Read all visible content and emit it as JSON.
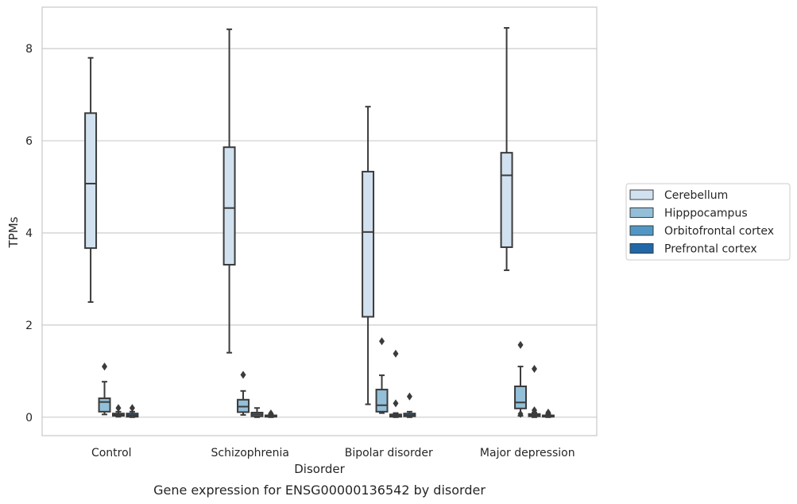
{
  "caption": "Gene expression for ENSG00000136542 by disorder",
  "chart_data": {
    "type": "box",
    "xlabel": "Disorder",
    "ylabel": "TPMs",
    "ylim": [
      -0.4,
      8.9
    ],
    "yticks": [
      0,
      2,
      4,
      6,
      8
    ],
    "grid": "horizontal",
    "legend_position": "right",
    "categories": [
      "Control",
      "Schizophrenia",
      "Bipolar disorder",
      "Major depression"
    ],
    "series": [
      {
        "name": "Cerebellum",
        "color": "#d1e1ef",
        "boxes": [
          {
            "whisker_low": 2.5,
            "q1": 3.67,
            "median": 5.07,
            "q3": 6.6,
            "whisker_high": 7.8,
            "outliers": []
          },
          {
            "whisker_low": 1.4,
            "q1": 3.31,
            "median": 4.54,
            "q3": 5.86,
            "whisker_high": 8.42,
            "outliers": []
          },
          {
            "whisker_low": 0.28,
            "q1": 2.18,
            "median": 4.02,
            "q3": 5.33,
            "whisker_high": 6.74,
            "outliers": []
          },
          {
            "whisker_low": 3.19,
            "q1": 3.69,
            "median": 5.25,
            "q3": 5.74,
            "whisker_high": 8.45,
            "outliers": []
          }
        ]
      },
      {
        "name": "Hipppocampus",
        "color": "#93bfd9",
        "boxes": [
          {
            "whisker_low": 0.06,
            "q1": 0.12,
            "median": 0.33,
            "q3": 0.41,
            "whisker_high": 0.77,
            "outliers": [
              1.1
            ]
          },
          {
            "whisker_low": 0.05,
            "q1": 0.11,
            "median": 0.23,
            "q3": 0.38,
            "whisker_high": 0.57,
            "outliers": [
              0.92
            ]
          },
          {
            "whisker_low": 0.09,
            "q1": 0.12,
            "median": 0.26,
            "q3": 0.6,
            "whisker_high": 0.91,
            "outliers": [
              1.65
            ]
          },
          {
            "whisker_low": 0.03,
            "q1": 0.19,
            "median": 0.32,
            "q3": 0.67,
            "whisker_high": 1.1,
            "outliers": [
              1.57,
              0.07
            ]
          }
        ]
      },
      {
        "name": "Orbitofrontal cortex",
        "color": "#5197c6",
        "boxes": [
          {
            "whisker_low": 0.01,
            "q1": 0.03,
            "median": 0.05,
            "q3": 0.08,
            "whisker_high": 0.12,
            "outliers": [
              0.2
            ]
          },
          {
            "whisker_low": 0.0,
            "q1": 0.02,
            "median": 0.06,
            "q3": 0.1,
            "whisker_high": 0.2,
            "outliers": []
          },
          {
            "whisker_low": 0.0,
            "q1": 0.01,
            "median": 0.03,
            "q3": 0.06,
            "whisker_high": 0.09,
            "outliers": [
              1.38,
              0.3
            ]
          },
          {
            "whisker_low": 0.0,
            "q1": 0.02,
            "median": 0.04,
            "q3": 0.07,
            "whisker_high": 0.1,
            "outliers": [
              1.05,
              0.15
            ]
          }
        ]
      },
      {
        "name": "Prefrontal cortex",
        "color": "#2268a9",
        "boxes": [
          {
            "whisker_low": 0.0,
            "q1": 0.01,
            "median": 0.04,
            "q3": 0.08,
            "whisker_high": 0.12,
            "outliers": [
              0.2
            ]
          },
          {
            "whisker_low": 0.0,
            "q1": 0.01,
            "median": 0.02,
            "q3": 0.04,
            "whisker_high": 0.06,
            "outliers": [
              0.08
            ]
          },
          {
            "whisker_low": 0.0,
            "q1": 0.02,
            "median": 0.04,
            "q3": 0.08,
            "whisker_high": 0.12,
            "outliers": [
              0.45
            ]
          },
          {
            "whisker_low": 0.0,
            "q1": 0.01,
            "median": 0.02,
            "q3": 0.04,
            "whisker_high": 0.07,
            "outliers": [
              0.1
            ]
          }
        ]
      }
    ]
  }
}
